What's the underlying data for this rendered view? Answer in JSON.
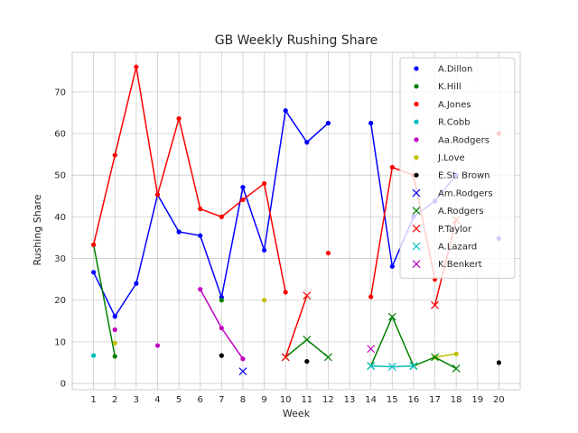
{
  "chart_data": {
    "type": "line",
    "title": "GB Weekly Rushing Share",
    "xlabel": "Week",
    "ylabel": "Rushing Share",
    "x_ticks": [
      1,
      2,
      3,
      4,
      5,
      6,
      7,
      8,
      9,
      10,
      11,
      12,
      13,
      14,
      15,
      16,
      17,
      18,
      19,
      20
    ],
    "y_ticks": [
      0,
      10,
      20,
      30,
      40,
      50,
      60,
      70
    ],
    "xlim": [
      0.0,
      21.0
    ],
    "ylim": [
      -1.5,
      79.5
    ],
    "grid": true,
    "legend_position": "top-right",
    "series": [
      {
        "name": "A.Dillon",
        "color": "#0000ff",
        "marker": "dot",
        "points": [
          [
            1,
            26.7
          ],
          [
            2,
            16.1
          ],
          [
            3,
            24.0
          ],
          [
            4,
            45.3
          ],
          [
            5,
            36.4
          ],
          [
            6,
            35.5
          ],
          [
            7,
            20.7
          ],
          [
            8,
            47.1
          ],
          [
            9,
            32.0
          ],
          [
            10,
            65.5
          ],
          [
            11,
            57.9
          ],
          [
            12,
            62.5
          ],
          [
            null,
            null
          ],
          [
            14,
            62.5
          ],
          [
            15,
            28.1
          ],
          [
            16,
            40.0
          ],
          [
            17,
            43.8
          ],
          [
            18,
            50.0
          ],
          [
            null,
            null
          ],
          [
            20,
            34.8
          ]
        ]
      },
      {
        "name": "K.Hill",
        "color": "#008000",
        "marker": "dot",
        "points": [
          [
            1,
            33.3
          ],
          [
            2,
            6.5
          ],
          [
            null,
            null
          ],
          [
            7,
            20.0
          ]
        ]
      },
      {
        "name": "A.Jones",
        "color": "#ff0000",
        "marker": "dot",
        "points": [
          [
            1,
            33.3
          ],
          [
            2,
            54.8
          ],
          [
            3,
            76.0
          ],
          [
            4,
            45.3
          ],
          [
            5,
            63.6
          ],
          [
            6,
            41.9
          ],
          [
            7,
            40.0
          ],
          [
            8,
            44.1
          ],
          [
            9,
            48.0
          ],
          [
            10,
            21.9
          ],
          [
            null,
            null
          ],
          [
            12,
            31.3
          ],
          [
            null,
            null
          ],
          [
            14,
            20.8
          ],
          [
            15,
            51.9
          ],
          [
            16,
            50.0
          ],
          [
            17,
            25.0
          ],
          [
            null,
            null
          ],
          [
            20,
            60.0
          ]
        ]
      },
      {
        "name": "R.Cobb",
        "color": "#00bfbf",
        "marker": "dot",
        "points": [
          [
            1,
            6.7
          ]
        ]
      },
      {
        "name": "Aa.Rodgers",
        "color": "#bf00bf",
        "marker": "dot",
        "points": [
          [
            2,
            12.9
          ],
          [
            null,
            null
          ],
          [
            4,
            9.1
          ],
          [
            null,
            null
          ],
          [
            6,
            22.6
          ],
          [
            7,
            13.3
          ],
          [
            8,
            5.9
          ]
        ]
      },
      {
        "name": "J.Love",
        "color": "#bfbf00",
        "marker": "dot",
        "points": [
          [
            2,
            9.7
          ],
          [
            null,
            null
          ],
          [
            9,
            20.0
          ],
          [
            null,
            null
          ],
          [
            17,
            6.3
          ],
          [
            18,
            7.1
          ]
        ]
      },
      {
        "name": "E.St. Brown",
        "color": "#000000",
        "marker": "dot",
        "points": [
          [
            7,
            6.7
          ],
          [
            null,
            null
          ],
          [
            11,
            5.3
          ],
          [
            null,
            null
          ],
          [
            20,
            5.0
          ]
        ]
      },
      {
        "name": "Am.Rodgers",
        "color": "#0000ff",
        "marker": "x",
        "points": [
          [
            8,
            2.9
          ]
        ]
      },
      {
        "name": "A.Rodgers",
        "color": "#008000",
        "marker": "x",
        "points": [
          [
            10,
            6.3
          ],
          [
            11,
            10.5
          ],
          [
            12,
            6.3
          ],
          [
            null,
            null
          ],
          [
            14,
            4.2
          ],
          [
            15,
            16.0
          ],
          [
            16,
            4.2
          ],
          [
            17,
            6.3
          ],
          [
            18,
            3.6
          ]
        ]
      },
      {
        "name": "P.Taylor",
        "color": "#ff0000",
        "marker": "x",
        "points": [
          [
            10,
            6.3
          ],
          [
            11,
            21.1
          ],
          [
            null,
            null
          ],
          [
            17,
            18.8
          ],
          [
            18,
            39.3
          ]
        ]
      },
      {
        "name": "A.Lazard",
        "color": "#00bfbf",
        "marker": "x",
        "points": [
          [
            14,
            4.2
          ],
          [
            15,
            4.0
          ],
          [
            16,
            4.2
          ]
        ]
      },
      {
        "name": "K.Benkert",
        "color": "#bf00bf",
        "marker": "x",
        "points": [
          [
            14,
            8.3
          ]
        ]
      }
    ]
  }
}
